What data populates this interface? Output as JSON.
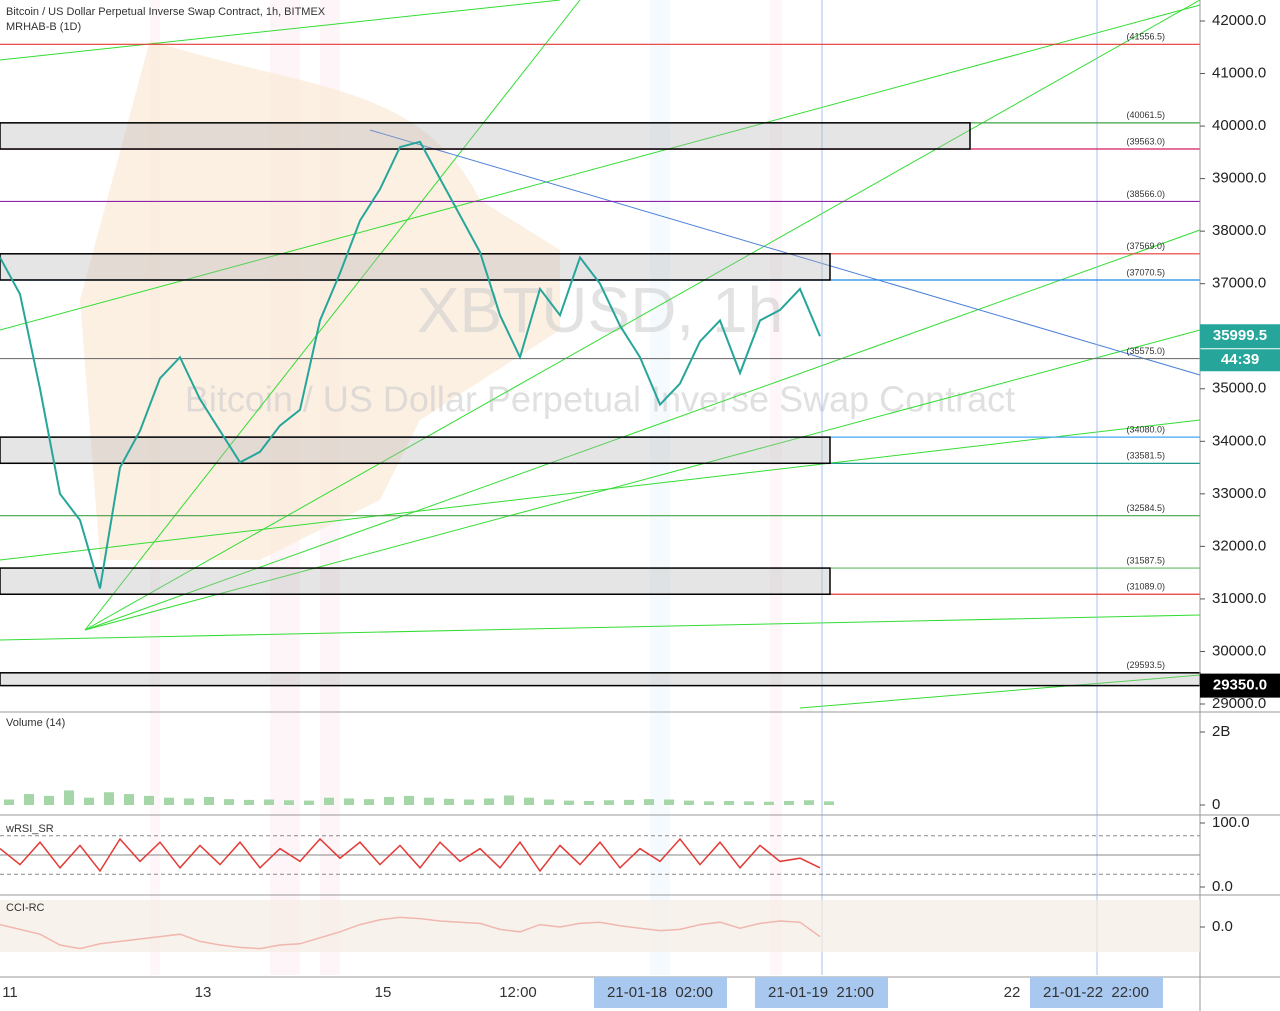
{
  "chart_data": [
    {
      "type": "line",
      "title": "Bitcoin / US Dollar Perpetual Inverse Swap Contract, 1h, BITMEX",
      "subtitle": "MRHAB-B (1D)",
      "watermark": [
        "XBTUSD, 1h",
        "Bitcoin / US Dollar Perpetual Inverse Swap Contract"
      ],
      "color": "#26a69a",
      "values": [
        37500,
        36800,
        35000,
        33000,
        32500,
        31200,
        33500,
        34200,
        35200,
        35600,
        34800,
        34200,
        33600,
        33800,
        34300,
        34600,
        36300,
        37200,
        38200,
        38800,
        39600,
        39700,
        39000,
        38300,
        37600,
        36400,
        35600,
        36900,
        36400,
        37500,
        37000,
        36200,
        35600,
        34700,
        35100,
        35900,
        36300,
        35300,
        36300,
        36500,
        36900,
        36000
      ],
      "ylim": [
        29000,
        42000
      ],
      "yticks": [
        {
          "value": 42000,
          "label": "42000.0"
        },
        {
          "value": 41000,
          "label": "41000.0"
        },
        {
          "value": 40000,
          "label": "40000.0"
        },
        {
          "value": 39000,
          "label": "39000.0"
        },
        {
          "value": 38000,
          "label": "38000.0"
        },
        {
          "value": 37000,
          "label": "37000.0"
        },
        {
          "value": 36000,
          "label": "36000.0"
        },
        {
          "value": 35000,
          "label": "35000.0"
        },
        {
          "value": 34000,
          "label": "34000.0"
        },
        {
          "value": 33000,
          "label": "33000.0"
        },
        {
          "value": 32000,
          "label": "32000.0"
        },
        {
          "value": 31000,
          "label": "31000.0"
        },
        {
          "value": 30000,
          "label": "30000.0"
        },
        {
          "value": 29000,
          "label": "29000.0"
        }
      ],
      "levels": [
        {
          "value": 41556.5,
          "label": "(41556.5)",
          "color": "#e53935"
        },
        {
          "value": 40061.5,
          "label": "(40061.5)",
          "color": "#43a047"
        },
        {
          "value": 39563.0,
          "label": "(39563.0)",
          "color": "#d81b60"
        },
        {
          "value": 38566.0,
          "label": "(38566.0)",
          "color": "#8e24aa"
        },
        {
          "value": 37569.0,
          "label": "(37569.0)",
          "color": "#e53935"
        },
        {
          "value": 37070.5,
          "label": "(37070.5)",
          "color": "#1e88e5"
        },
        {
          "value": 35575.0,
          "label": "(35575.0)",
          "color": "#757575"
        },
        {
          "value": 34080.0,
          "label": "(34080.0)",
          "color": "#42a5f5"
        },
        {
          "value": 33581.5,
          "label": "(33581.5)",
          "color": "#00897b"
        },
        {
          "value": 32584.5,
          "label": "(32584.5)",
          "color": "#43a047"
        },
        {
          "value": 31587.5,
          "label": "(31587.5)",
          "color": "#66bb6a"
        },
        {
          "value": 31089.0,
          "label": "(31089.0)",
          "color": "#e53935"
        },
        {
          "value": 29593.5,
          "label": "(29593.5)",
          "color": "#757575"
        }
      ],
      "last_price": 35999.5,
      "countdown": "44:39",
      "marker_price": {
        "value": 29350,
        "label": "29350.0"
      },
      "time_axis": [
        "11",
        "13",
        "15",
        "12:00",
        "21-01-18  02:00",
        "21-01-19  21:00",
        "22",
        "21-01-22  22:00"
      ]
    },
    {
      "type": "bar",
      "title": "Volume (14)",
      "color": "#a5d6a7",
      "values": [
        150000000,
        300000000,
        250000000,
        400000000,
        200000000,
        350000000,
        300000000,
        250000000,
        200000000,
        180000000,
        220000000,
        160000000,
        140000000,
        150000000,
        130000000,
        120000000,
        200000000,
        180000000,
        160000000,
        220000000,
        250000000,
        200000000,
        170000000,
        150000000,
        180000000,
        260000000,
        200000000,
        150000000,
        120000000,
        110000000,
        130000000,
        140000000,
        160000000,
        150000000,
        120000000,
        100000000,
        110000000,
        100000000,
        90000000,
        110000000,
        130000000,
        100000000
      ],
      "ylim": [
        0,
        2000000000
      ],
      "yticks": [
        {
          "value": 2000000000,
          "label": "2B"
        },
        0
      ]
    },
    {
      "type": "line",
      "title": "wRSI_SR",
      "color": "#e53935",
      "values": [
        60,
        35,
        70,
        30,
        65,
        25,
        75,
        40,
        70,
        30,
        65,
        35,
        70,
        30,
        60,
        40,
        75,
        45,
        70,
        35,
        65,
        30,
        70,
        40,
        60,
        30,
        70,
        25,
        65,
        35,
        70,
        30,
        60,
        40,
        75,
        35,
        70,
        30,
        65,
        40,
        45,
        30
      ],
      "ylim": [
        0,
        100
      ],
      "yticks": [
        {
          "value": 100,
          "label": "100.0"
        },
        {
          "value": 0,
          "label": "0.0"
        }
      ],
      "levels": [
        80,
        50,
        20
      ]
    },
    {
      "type": "line",
      "title": "CCI-RC",
      "color": "#e53935",
      "values": [
        20,
        -20,
        -60,
        -150,
        -180,
        -140,
        -120,
        -100,
        -80,
        -60,
        -120,
        -150,
        -170,
        -180,
        -150,
        -140,
        -90,
        -40,
        20,
        60,
        80,
        70,
        50,
        40,
        30,
        -20,
        -40,
        20,
        0,
        30,
        40,
        10,
        -10,
        -30,
        -20,
        20,
        40,
        -10,
        30,
        50,
        40,
        -80
      ],
      "ylim": [
        -400,
        250
      ],
      "yticks": [
        {
          "value": 0,
          "label": "0.0"
        }
      ]
    }
  ]
}
